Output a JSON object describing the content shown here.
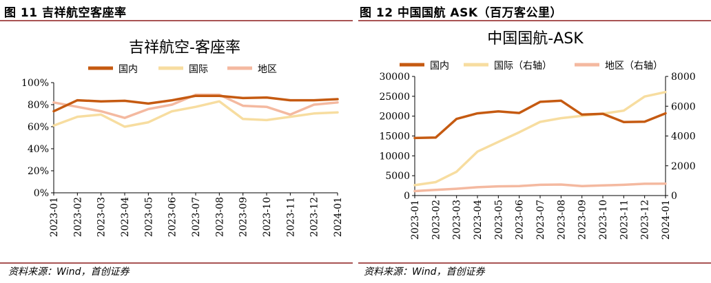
{
  "figures": [
    {
      "caption": "图 11 吉祥航空客座率",
      "source": "资料来源：Wind，首创证券",
      "chart_data": {
        "type": "line",
        "title": "吉祥航空-客座率",
        "categories": [
          "2023-01",
          "2023-02",
          "2023-03",
          "2023-04",
          "2023-05",
          "2023-06",
          "2023-07",
          "2023-08",
          "2023-09",
          "2023-10",
          "2023-11",
          "2023-12",
          "2024-01"
        ],
        "ylim": [
          0,
          100
        ],
        "yticks": [
          "0%",
          "20%",
          "40%",
          "60%",
          "80%",
          "100%"
        ],
        "legend_position": "top",
        "grid": false,
        "series": [
          {
            "name": "国内",
            "color": "#C55A11",
            "values": [
              74,
              84,
              83,
              83.5,
              81,
              84,
              88,
              88,
              86,
              86.5,
              84,
              84,
              85
            ]
          },
          {
            "name": "国际",
            "color": "#F7DDA0",
            "values": [
              61,
              69,
              71,
              60,
              64,
              74,
              78,
              83,
              67,
              66,
              69,
              72,
              73
            ]
          },
          {
            "name": "地区",
            "color": "#F4B9A0",
            "values": [
              82,
              78,
              74,
              68,
              76,
              80,
              89,
              89,
              79,
              78,
              71,
              80,
              82
            ]
          }
        ]
      }
    },
    {
      "caption": "图 12 中国国航 ASK（百万客公里）",
      "source": "资料来源：Wind，首创证券",
      "chart_data": {
        "type": "line",
        "title": "中国国航-ASK",
        "categories": [
          "2023-01",
          "2023-02",
          "2023-03",
          "2023-04",
          "2023-05",
          "2023-06",
          "2023-07",
          "2023-08",
          "2023-09",
          "2023-10",
          "2023-11",
          "2023-12",
          "2024-01"
        ],
        "ylim_left": [
          0,
          30000
        ],
        "ylim_right": [
          0,
          8000
        ],
        "yticks_left": [
          "0",
          "5000",
          "10000",
          "15000",
          "20000",
          "25000",
          "30000"
        ],
        "yticks_right": [
          "0",
          "2000",
          "4000",
          "6000",
          "8000"
        ],
        "legend_position": "top",
        "grid": false,
        "series": [
          {
            "name": "国内",
            "axis": "left",
            "color": "#C55A11",
            "values": [
              14500,
              14600,
              19300,
              20700,
              21200,
              20800,
              23600,
              23900,
              20400,
              20600,
              18500,
              18600,
              20700
            ]
          },
          {
            "name": "国际（右轴）",
            "axis": "right",
            "color": "#F7DDA0",
            "values": [
              700,
              900,
              1600,
              2950,
              3600,
              4250,
              4950,
              5200,
              5350,
              5500,
              5700,
              6650,
              6950
            ]
          },
          {
            "name": "地区（右轴）",
            "axis": "right",
            "color": "#F4B9A0",
            "values": [
              300,
              380,
              460,
              560,
              620,
              640,
              720,
              740,
              640,
              680,
              720,
              790,
              800
            ]
          }
        ]
      }
    }
  ]
}
